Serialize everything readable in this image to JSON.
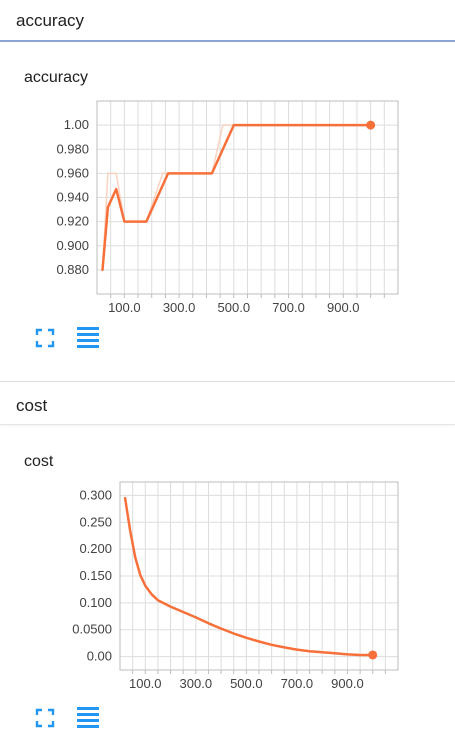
{
  "sections": [
    {
      "header": "accuracy",
      "card_title": "accuracy"
    },
    {
      "header": "cost",
      "card_title": "cost"
    }
  ],
  "controls": {
    "expand_icon": "fullscreen-expand-icon",
    "data_icon": "data-list-icon"
  },
  "colors": {
    "line": "#f7703a",
    "smoothed_raw": "#fbc9b3",
    "grid": "#dddddd",
    "axis": "#bdbdbd",
    "icon": "#2196f3",
    "header_rule": "#8aa4d6"
  },
  "chart_data": [
    {
      "type": "line",
      "title": "accuracy",
      "xlim": [
        0,
        1100
      ],
      "ylim": [
        0.86,
        1.02
      ],
      "xticks": [
        "100.0",
        "300.0",
        "500.0",
        "700.0",
        "900.0"
      ],
      "yticks": [
        "0.880",
        "0.900",
        "0.920",
        "0.940",
        "0.960",
        "0.980",
        "1.00"
      ],
      "grid": true,
      "series": [
        {
          "role": "smoothed",
          "x": [
            20,
            40,
            70,
            100,
            180,
            260,
            420,
            500,
            1000
          ],
          "y": [
            0.88,
            0.932,
            0.947,
            0.92,
            0.92,
            0.96,
            0.96,
            1.0,
            1.0
          ]
        },
        {
          "role": "raw",
          "x": [
            20,
            40,
            70,
            100,
            180,
            240,
            260,
            420,
            460,
            500,
            1000
          ],
          "y": [
            0.88,
            0.96,
            0.96,
            0.92,
            0.92,
            0.96,
            0.96,
            0.96,
            1.0,
            1.0,
            1.0
          ]
        }
      ]
    },
    {
      "type": "line",
      "title": "cost",
      "xlim": [
        0,
        1100
      ],
      "ylim": [
        -0.025,
        0.325
      ],
      "xticks": [
        "100.0",
        "300.0",
        "500.0",
        "700.0",
        "900.0"
      ],
      "yticks": [
        "0.00",
        "0.0500",
        "0.100",
        "0.150",
        "0.200",
        "0.250",
        "0.300"
      ],
      "grid": true,
      "series": [
        {
          "role": "smoothed",
          "x": [
            20,
            40,
            60,
            80,
            100,
            125,
            150,
            200,
            250,
            300,
            350,
            400,
            450,
            500,
            550,
            600,
            650,
            700,
            750,
            800,
            850,
            900,
            950,
            1000
          ],
          "y": [
            0.295,
            0.235,
            0.185,
            0.152,
            0.132,
            0.116,
            0.105,
            0.093,
            0.083,
            0.073,
            0.062,
            0.052,
            0.043,
            0.035,
            0.028,
            0.022,
            0.017,
            0.013,
            0.01,
            0.008,
            0.006,
            0.004,
            0.003,
            0.003
          ]
        }
      ]
    }
  ]
}
